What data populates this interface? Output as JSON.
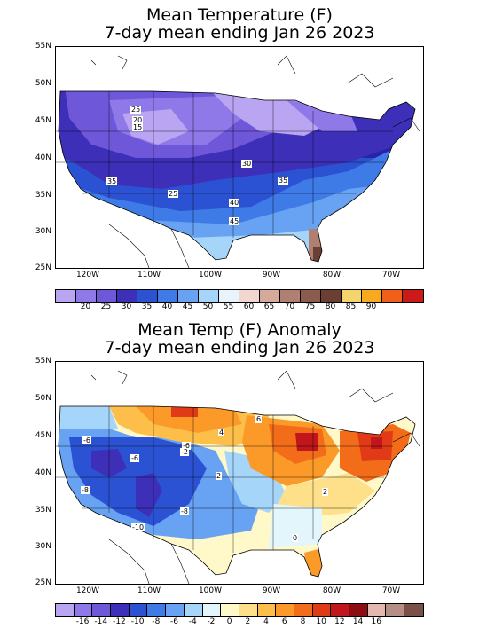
{
  "maps": [
    {
      "title_line1": "Mean Temperature (F)",
      "title_line2": "7-day mean ending Jan 26 2023",
      "lat_labels": [
        "55N",
        "50N",
        "45N",
        "40N",
        "35N",
        "30N",
        "25N"
      ],
      "lon_labels": [
        "120W",
        "110W",
        "100W",
        "90W",
        "80W",
        "70W"
      ],
      "contour_labels": [
        "25",
        "20",
        "15",
        "30",
        "35",
        "35",
        "25",
        "40",
        "45"
      ],
      "colorbar": {
        "colors": [
          "#b9a5f2",
          "#8f78e8",
          "#6e57d8",
          "#3d2fb8",
          "#2c52d4",
          "#3f7be6",
          "#67a3f2",
          "#a6d5fa",
          "#e8f4fb",
          "#f2d7d0",
          "#d6a99d",
          "#b07f72",
          "#8a5b4e",
          "#6b3f33",
          "#f4d46c",
          "#f8a91d",
          "#f06018",
          "#cc1a1a"
        ],
        "labels": [
          "20",
          "25",
          "30",
          "35",
          "40",
          "45",
          "50",
          "55",
          "60",
          "65",
          "70",
          "75",
          "80",
          "85",
          "90"
        ]
      }
    },
    {
      "title_line1": "Mean Temp (F) Anomaly",
      "title_line2": "7-day mean ending Jan 26 2023",
      "lat_labels": [
        "55N",
        "50N",
        "45N",
        "40N",
        "35N",
        "30N",
        "25N"
      ],
      "lon_labels": [
        "120W",
        "110W",
        "100W",
        "90W",
        "80W",
        "70W"
      ],
      "contour_labels": [
        "-6",
        "-8",
        "-6",
        "-10",
        "-8",
        "6",
        "4",
        "-2",
        "-6",
        "2",
        "2",
        "0"
      ],
      "colorbar": {
        "colors": [
          "#b9a5f2",
          "#8f78e8",
          "#6e57d8",
          "#3d2fb8",
          "#2c52d4",
          "#3f7be6",
          "#67a3f2",
          "#a6d5fa",
          "#e3f6fb",
          "#fff8c8",
          "#fee08a",
          "#fdbf4a",
          "#fb9a29",
          "#f26c1a",
          "#e03b16",
          "#c0161c",
          "#8e0d12",
          "#e2b8b0",
          "#b58e86",
          "#7a5048"
        ],
        "labels": [
          "-16",
          "-14",
          "-12",
          "-10",
          "-8",
          "-6",
          "-4",
          "-2",
          "0",
          "2",
          "4",
          "6",
          "8",
          "10",
          "12",
          "14",
          "16"
        ]
      }
    }
  ]
}
